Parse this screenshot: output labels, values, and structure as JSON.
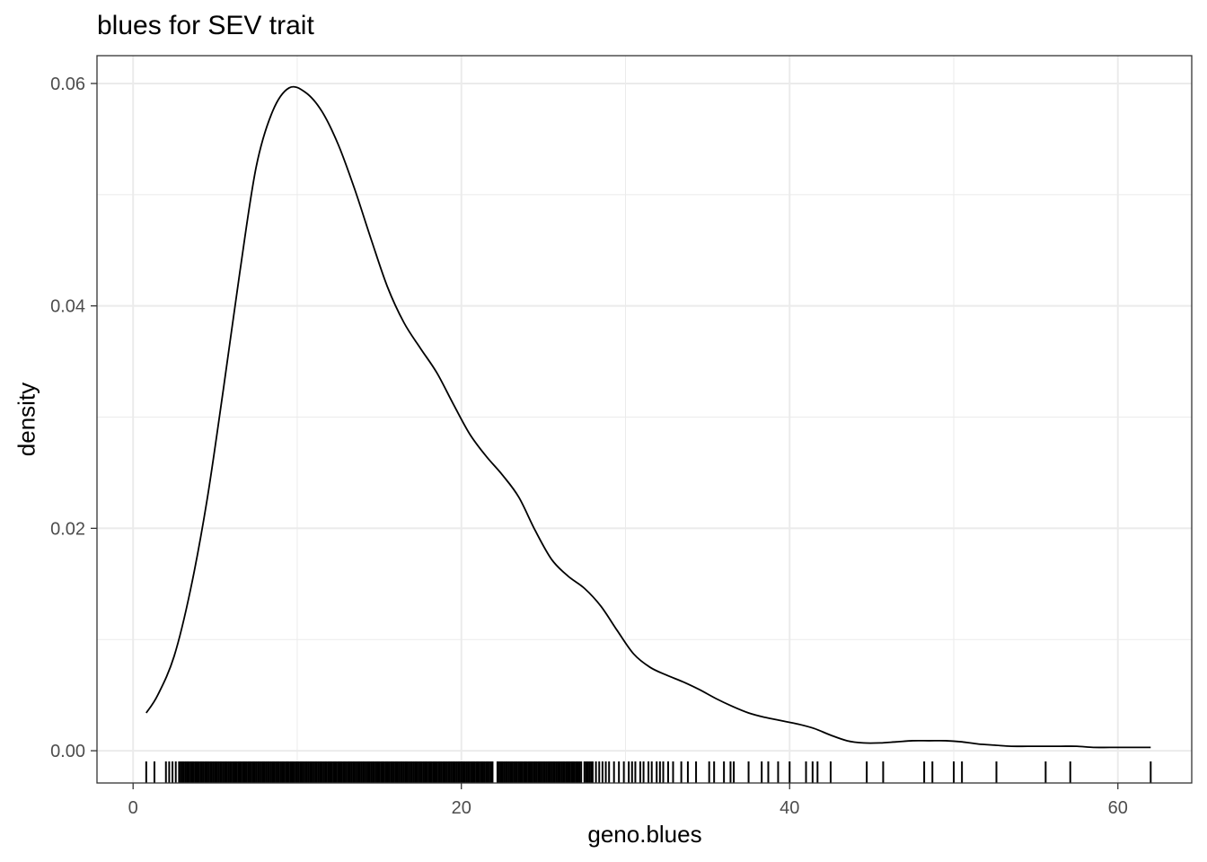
{
  "chart_data": {
    "type": "area",
    "title": "blues for SEV trait",
    "xlabel": "geno.blues",
    "ylabel": "density",
    "xlim": [
      -2.2,
      64.5
    ],
    "ylim": [
      -0.0029,
      0.0625
    ],
    "x_ticks": [
      0,
      20,
      40,
      60
    ],
    "x_tick_labels": [
      "0",
      "20",
      "40",
      "60"
    ],
    "y_ticks": [
      0.0,
      0.02,
      0.04,
      0.06
    ],
    "y_tick_labels": [
      "0.00",
      "0.02",
      "0.04",
      "0.06"
    ],
    "grid": true,
    "density_curve": {
      "x": [
        0.8,
        1.5,
        2.5,
        3.5,
        4.5,
        5.5,
        6.5,
        7.5,
        8.5,
        9.5,
        10.5,
        11.5,
        12.5,
        13.5,
        14.5,
        15.5,
        16.5,
        17.5,
        18.5,
        19.5,
        20.5,
        21.5,
        22.5,
        23.5,
        24.5,
        25.5,
        26.5,
        27.5,
        28.5,
        29.5,
        30.5,
        31.5,
        32.5,
        33.5,
        34.5,
        35.5,
        36.5,
        37.5,
        38.5,
        39.5,
        40.5,
        41.5,
        42.5,
        43.5,
        44.5,
        45.5,
        46.5,
        47.5,
        48.5,
        49.5,
        50.5,
        51.5,
        52.5,
        53.5,
        54.5,
        55.5,
        56.5,
        57.5,
        58.5,
        59.5,
        60.5,
        61.5,
        62.0
      ],
      "y": [
        0.0034,
        0.005,
        0.0085,
        0.0145,
        0.0225,
        0.0325,
        0.043,
        0.0525,
        0.0575,
        0.0596,
        0.0592,
        0.0575,
        0.0545,
        0.0505,
        0.046,
        0.0417,
        0.0385,
        0.0362,
        0.034,
        0.0312,
        0.0285,
        0.0265,
        0.0248,
        0.0228,
        0.0198,
        0.0172,
        0.0157,
        0.0146,
        0.013,
        0.0108,
        0.0087,
        0.0075,
        0.0068,
        0.0062,
        0.0055,
        0.0047,
        0.004,
        0.0034,
        0.003,
        0.0027,
        0.0024,
        0.002,
        0.0014,
        0.0009,
        0.0007,
        0.0007,
        0.0008,
        0.0009,
        0.0009,
        0.0009,
        0.0008,
        0.0006,
        0.0005,
        0.0004,
        0.0004,
        0.0004,
        0.0004,
        0.0004,
        0.0003,
        0.0003,
        0.0003,
        0.0003,
        0.0003
      ]
    },
    "rug": {
      "x": [
        0.8,
        1.3,
        2.0,
        2.2,
        2.4,
        2.6,
        2.8,
        2.9,
        3.0,
        3.1,
        3.2,
        3.3,
        3.4,
        3.5,
        3.6,
        3.7,
        3.8,
        3.9,
        4.0,
        4.1,
        4.2,
        4.3,
        4.4,
        4.5,
        4.6,
        4.7,
        4.8,
        4.9,
        5.0,
        5.1,
        5.2,
        5.3,
        5.4,
        5.5,
        5.6,
        5.7,
        5.8,
        5.9,
        6.0,
        6.1,
        6.2,
        6.3,
        6.4,
        6.5,
        6.6,
        6.7,
        6.8,
        6.9,
        7.0,
        7.1,
        7.2,
        7.3,
        7.4,
        7.5,
        7.6,
        7.7,
        7.8,
        7.9,
        8.0,
        8.1,
        8.2,
        8.3,
        8.4,
        8.5,
        8.6,
        8.7,
        8.8,
        8.9,
        9.0,
        9.1,
        9.2,
        9.3,
        9.4,
        9.5,
        9.6,
        9.7,
        9.8,
        9.9,
        10.0,
        10.1,
        10.2,
        10.3,
        10.4,
        10.5,
        10.6,
        10.7,
        10.8,
        10.9,
        11.0,
        11.1,
        11.2,
        11.3,
        11.4,
        11.5,
        11.6,
        11.7,
        11.8,
        11.9,
        12.0,
        12.1,
        12.2,
        12.3,
        12.4,
        12.5,
        12.6,
        12.7,
        12.8,
        12.9,
        13.0,
        13.1,
        13.2,
        13.3,
        13.4,
        13.5,
        13.6,
        13.7,
        13.8,
        13.9,
        14.0,
        14.1,
        14.2,
        14.3,
        14.4,
        14.5,
        14.6,
        14.7,
        14.8,
        14.9,
        15.0,
        15.1,
        15.2,
        15.3,
        15.4,
        15.5,
        15.6,
        15.7,
        15.8,
        15.9,
        16.0,
        16.1,
        16.2,
        16.3,
        16.4,
        16.5,
        16.6,
        16.7,
        16.8,
        16.9,
        17.0,
        17.1,
        17.2,
        17.3,
        17.4,
        17.5,
        17.6,
        17.7,
        17.8,
        17.9,
        18.0,
        18.1,
        18.2,
        18.3,
        18.4,
        18.5,
        18.6,
        18.7,
        18.8,
        18.9,
        19.0,
        19.1,
        19.2,
        19.3,
        19.4,
        19.5,
        19.6,
        19.7,
        19.8,
        19.9,
        20.0,
        20.1,
        20.2,
        20.3,
        20.4,
        20.5,
        20.6,
        20.7,
        20.8,
        20.9,
        21.0,
        21.1,
        21.2,
        21.3,
        21.4,
        21.5,
        21.6,
        21.7,
        21.8,
        21.9,
        22.2,
        22.3,
        22.4,
        22.5,
        22.6,
        22.7,
        22.8,
        22.9,
        23.0,
        23.1,
        23.2,
        23.3,
        23.4,
        23.5,
        23.6,
        23.7,
        23.8,
        23.9,
        24.0,
        24.1,
        24.2,
        24.3,
        24.4,
        24.5,
        24.6,
        24.7,
        24.8,
        24.9,
        25.0,
        25.1,
        25.2,
        25.3,
        25.4,
        25.5,
        25.6,
        25.7,
        25.8,
        25.9,
        26.0,
        26.1,
        26.2,
        26.3,
        26.4,
        26.5,
        26.6,
        26.7,
        26.8,
        26.9,
        27.0,
        27.1,
        27.2,
        27.3,
        27.5,
        27.6,
        27.7,
        27.8,
        27.9,
        28.0,
        28.2,
        28.4,
        28.6,
        28.8,
        29.0,
        29.3,
        29.6,
        29.9,
        30.2,
        30.4,
        30.6,
        30.9,
        31.1,
        31.4,
        31.6,
        31.9,
        32.1,
        32.3,
        32.6,
        32.9,
        33.4,
        33.8,
        34.3,
        35.1,
        35.4,
        36.0,
        36.4,
        36.6,
        37.5,
        38.3,
        38.7,
        39.3,
        40.0,
        41.0,
        41.4,
        41.7,
        42.5,
        44.7,
        45.7,
        48.2,
        48.7,
        50.0,
        50.5,
        52.6,
        55.6,
        57.1,
        62.0
      ]
    }
  }
}
